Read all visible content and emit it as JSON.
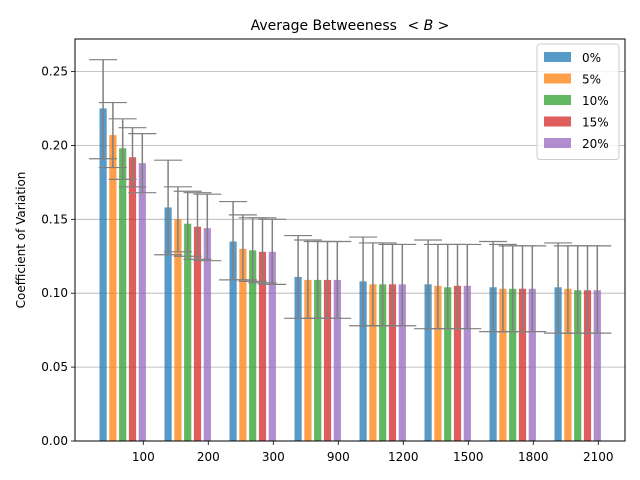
{
  "chart_data": {
    "type": "bar",
    "title": "Average Betweeness $<B>$",
    "title_display": "Average Betweeness",
    "title_math": "< B >",
    "xlabel": "",
    "ylabel": "Coefficient of Variation",
    "ylim": [
      0,
      0.272
    ],
    "yticks": [
      "0.00",
      "0.05",
      "0.10",
      "0.15",
      "0.20",
      "0.25"
    ],
    "grid": "y",
    "legend_position": "top-right",
    "categories": [
      "100",
      "200",
      "300",
      "900",
      "1200",
      "1500",
      "1800",
      "2100"
    ],
    "series": [
      {
        "name": "0%",
        "color": "#1f77b4",
        "values": [
          0.225,
          0.158,
          0.135,
          0.111,
          0.108,
          0.106,
          0.104,
          0.104
        ],
        "err_low": [
          0.191,
          0.126,
          0.109,
          0.083,
          0.078,
          0.076,
          0.074,
          0.073
        ],
        "err_high": [
          0.258,
          0.19,
          0.162,
          0.139,
          0.138,
          0.136,
          0.135,
          0.134
        ]
      },
      {
        "name": "5%",
        "color": "#ff7f0e",
        "values": [
          0.207,
          0.15,
          0.13,
          0.109,
          0.106,
          0.105,
          0.103,
          0.103
        ],
        "err_low": [
          0.185,
          0.128,
          0.109,
          0.083,
          0.078,
          0.076,
          0.074,
          0.073
        ],
        "err_high": [
          0.229,
          0.172,
          0.153,
          0.136,
          0.134,
          0.133,
          0.133,
          0.132
        ]
      },
      {
        "name": "10%",
        "color": "#2ca02c",
        "values": [
          0.198,
          0.147,
          0.129,
          0.109,
          0.106,
          0.104,
          0.103,
          0.102
        ],
        "err_low": [
          0.177,
          0.125,
          0.108,
          0.083,
          0.078,
          0.076,
          0.074,
          0.073
        ],
        "err_high": [
          0.218,
          0.169,
          0.151,
          0.135,
          0.134,
          0.133,
          0.132,
          0.132
        ]
      },
      {
        "name": "15%",
        "color": "#d62728",
        "values": [
          0.192,
          0.145,
          0.128,
          0.109,
          0.106,
          0.105,
          0.103,
          0.102
        ],
        "err_low": [
          0.172,
          0.123,
          0.107,
          0.083,
          0.078,
          0.076,
          0.074,
          0.073
        ],
        "err_high": [
          0.212,
          0.168,
          0.151,
          0.135,
          0.133,
          0.133,
          0.132,
          0.132
        ]
      },
      {
        "name": "20%",
        "color": "#9467bd",
        "values": [
          0.188,
          0.144,
          0.128,
          0.109,
          0.106,
          0.105,
          0.103,
          0.102
        ],
        "err_low": [
          0.168,
          0.122,
          0.106,
          0.083,
          0.078,
          0.076,
          0.074,
          0.073
        ],
        "err_high": [
          0.208,
          0.167,
          0.15,
          0.135,
          0.133,
          0.133,
          0.132,
          0.132
        ]
      }
    ]
  }
}
